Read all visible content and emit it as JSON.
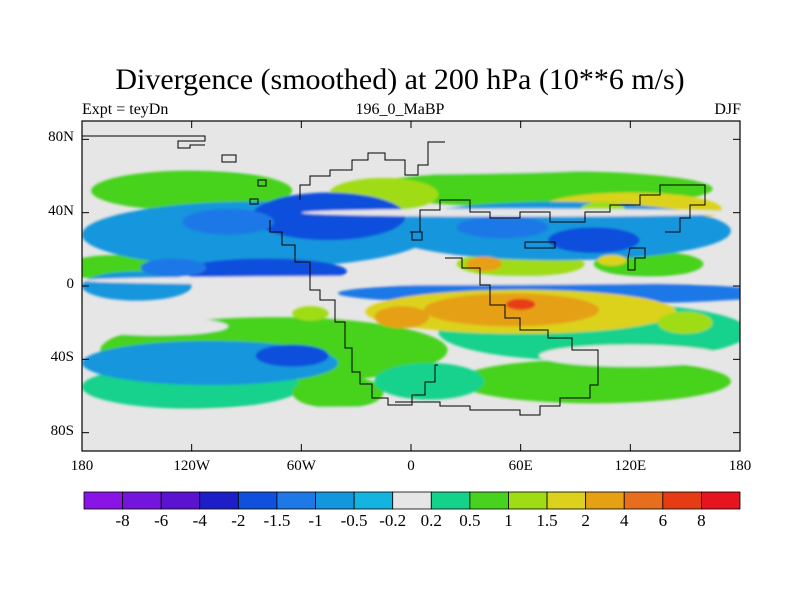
{
  "chart_data": {
    "type": "heatmap",
    "title": "Divergence (smoothed) at 200 hPa (10**6 m/s)",
    "left_subtitle": "Expt = teyDn",
    "center_subtitle": "196_0_MaBP",
    "right_subtitle": "DJF",
    "xlim": [
      -180,
      180
    ],
    "ylim": [
      -90,
      90
    ],
    "x_ticks": [
      {
        "value": -180,
        "label": "180"
      },
      {
        "value": -120,
        "label": "120W"
      },
      {
        "value": -60,
        "label": "60W"
      },
      {
        "value": 0,
        "label": "0"
      },
      {
        "value": 60,
        "label": "60E"
      },
      {
        "value": 120,
        "label": "120E"
      },
      {
        "value": 180,
        "label": "180"
      }
    ],
    "y_ticks": [
      {
        "value": 80,
        "label": "80N"
      },
      {
        "value": 40,
        "label": "40N"
      },
      {
        "value": 0,
        "label": "0"
      },
      {
        "value": -40,
        "label": "40S"
      },
      {
        "value": -80,
        "label": "80S"
      }
    ],
    "colorbar": {
      "levels": [
        "-8",
        "-6",
        "-4",
        "-2",
        "-1.5",
        "-1",
        "-0.5",
        "-0.2",
        "0.2",
        "0.5",
        "1",
        "1.5",
        "2",
        "4",
        "6",
        "8"
      ],
      "colors": [
        "#8a14e6",
        "#7414dc",
        "#5a14d0",
        "#1e1ec8",
        "#0f50dc",
        "#1e78e6",
        "#1496dc",
        "#14b4e1",
        "#e6e6e6",
        "#14d28c",
        "#46d21e",
        "#a0dc14",
        "#dcd21e",
        "#e6a014",
        "#e66e1e",
        "#e63c14",
        "#e6141e"
      ]
    },
    "features": [
      {
        "id": "b1",
        "lon": -75,
        "lat": -35,
        "rx": 95,
        "ry": 18,
        "bin": 10
      },
      {
        "id": "b2",
        "lon": -120,
        "lat": -55,
        "rx": 60,
        "ry": 12,
        "bin": 9
      },
      {
        "id": "b3",
        "lon": 100,
        "lat": -52,
        "rx": 75,
        "ry": 12,
        "bin": 10
      },
      {
        "id": "b4",
        "lon": 100,
        "lat": -25,
        "rx": 85,
        "ry": 16,
        "bin": 9
      },
      {
        "id": "b5",
        "lon": -120,
        "lat": 52,
        "rx": 55,
        "ry": 11,
        "bin": 10
      },
      {
        "id": "b6",
        "lon": 70,
        "lat": 53,
        "rx": 95,
        "ry": 10,
        "bin": 10
      },
      {
        "id": "b7",
        "lon": -15,
        "lat": 50,
        "rx": 30,
        "ry": 9,
        "bin": 11
      },
      {
        "id": "b8",
        "lon": 120,
        "lat": 42,
        "rx": 50,
        "ry": 9,
        "bin": 12
      },
      {
        "id": "b9",
        "lon": -160,
        "lat": 10,
        "rx": 30,
        "ry": 7,
        "bin": 10
      },
      {
        "id": "b10",
        "lon": 60,
        "lat": 12,
        "rx": 35,
        "ry": 7,
        "bin": 11
      },
      {
        "id": "b11",
        "lon": 130,
        "lat": 12,
        "rx": 30,
        "ry": 7,
        "bin": 10
      },
      {
        "id": "b12",
        "lon": -40,
        "lat": -58,
        "rx": 25,
        "ry": 9,
        "bin": 10
      },
      {
        "id": "b13",
        "lon": 10,
        "lat": -52,
        "rx": 30,
        "ry": 10,
        "bin": 9
      },
      {
        "id": "d1",
        "lon": -85,
        "lat": 28,
        "rx": 95,
        "ry": 18,
        "bin": 6
      },
      {
        "id": "d2",
        "lon": 80,
        "lat": 30,
        "rx": 95,
        "ry": 16,
        "bin": 6
      },
      {
        "id": "d3",
        "lon": 80,
        "lat": -4,
        "rx": 120,
        "ry": 6,
        "bin": 5
      },
      {
        "id": "d4",
        "lon": -110,
        "lat": -42,
        "rx": 70,
        "ry": 12,
        "bin": 6
      },
      {
        "id": "d5",
        "lon": -150,
        "lat": 0,
        "rx": 30,
        "ry": 8,
        "bin": 6
      },
      {
        "id": "d6",
        "lon": -45,
        "lat": 38,
        "rx": 42,
        "ry": 13,
        "bin": 4
      },
      {
        "id": "d7",
        "lon": -100,
        "lat": 35,
        "rx": 25,
        "ry": 7,
        "bin": 5
      },
      {
        "id": "d8",
        "lon": -80,
        "lat": 8,
        "rx": 45,
        "ry": 7,
        "bin": 4
      },
      {
        "id": "d9",
        "lon": 100,
        "lat": 25,
        "rx": 25,
        "ry": 7,
        "bin": 4
      },
      {
        "id": "d10",
        "lon": -65,
        "lat": -38,
        "rx": 20,
        "ry": 6,
        "bin": 4
      },
      {
        "id": "d11",
        "lon": 50,
        "lat": 32,
        "rx": 25,
        "ry": 6,
        "bin": 5
      },
      {
        "id": "d12",
        "lon": -130,
        "lat": 10,
        "rx": 18,
        "ry": 5,
        "bin": 5
      },
      {
        "id": "p1",
        "lon": 60,
        "lat": -14,
        "rx": 85,
        "ry": 12,
        "bin": 12
      },
      {
        "id": "p2",
        "lon": 55,
        "lat": -13,
        "rx": 48,
        "ry": 9,
        "bin": 13
      },
      {
        "id": "p3",
        "lon": -5,
        "lat": -17,
        "rx": 15,
        "ry": 6,
        "bin": 13
      },
      {
        "id": "p4",
        "lon": 60,
        "lat": -10,
        "rx": 8,
        "ry": 3,
        "bin": 15
      },
      {
        "id": "p5",
        "lon": 40,
        "lat": 12,
        "rx": 10,
        "ry": 4,
        "bin": 13
      },
      {
        "id": "p6",
        "lon": 110,
        "lat": 14,
        "rx": 8,
        "ry": 3,
        "bin": 12
      },
      {
        "id": "p7",
        "lon": -55,
        "lat": -15,
        "rx": 10,
        "ry": 4,
        "bin": 11
      },
      {
        "id": "p8",
        "lon": 150,
        "lat": -20,
        "rx": 15,
        "ry": 6,
        "bin": 11
      },
      {
        "id": "p9",
        "lon": 105,
        "lat": 42,
        "rx": 12,
        "ry": 4,
        "bin": 11
      }
    ],
    "white_bands": [
      {
        "lon": 0,
        "lat": 75,
        "rx": 190,
        "ry": 14
      },
      {
        "lon": -30,
        "lat": -75,
        "rx": 150,
        "ry": 9
      },
      {
        "lon": 120,
        "lat": -78,
        "rx": 80,
        "ry": 7
      },
      {
        "lon": 0,
        "lat": 3,
        "rx": 180,
        "ry": 2.5
      },
      {
        "lon": 60,
        "lat": 40,
        "rx": 120,
        "ry": 2.2
      },
      {
        "lon": -140,
        "lat": -22,
        "rx": 40,
        "ry": 5
      },
      {
        "lon": 120,
        "lat": -38,
        "rx": 50,
        "ry": 6
      }
    ]
  }
}
